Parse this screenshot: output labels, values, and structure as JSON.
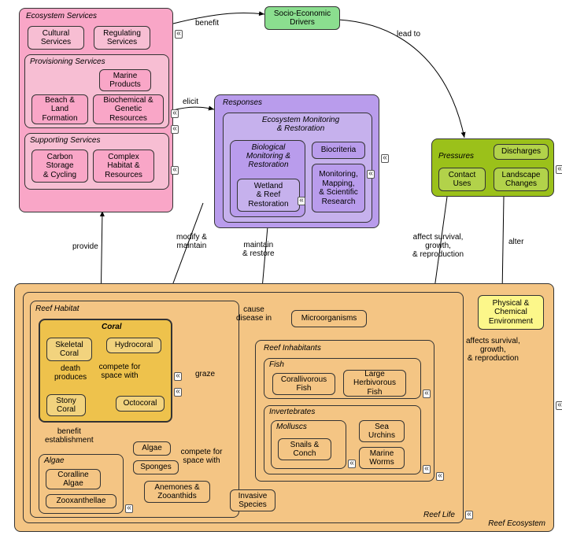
{
  "colors": {
    "ecoservices": "#f9a6c7",
    "ecoservices_item": "#f7bed3",
    "socio": "#8bde8f",
    "responses": "#b99cec",
    "responses_item": "#c6b1ed",
    "pressures": "#9bc11a",
    "pressures_item": "#b2d24a",
    "reef": "#f4c584",
    "reef_item": "#f4c584",
    "coral_group": "#eec24c",
    "coral_item": "#f2d37e",
    "physchem": "#fcf78a",
    "border": "#333333",
    "arrow": "#000000"
  },
  "groups": {
    "ecoservices": {
      "title": "Ecosystem Services"
    },
    "provisioning": {
      "title": "Provisioning Services"
    },
    "supporting": {
      "title": "Supporting Services"
    },
    "responses": {
      "title": "Responses"
    },
    "eco_monitor": {
      "title": "Ecosystem Monitoring\n& Restoration"
    },
    "bio_monitor": {
      "title": "Biological\nMonitoring &\nRestoration"
    },
    "pressures": {
      "title": "Pressures"
    },
    "reef_eco": {
      "title": "Reef Ecosystem"
    },
    "reef_life": {
      "title": "Reef Life"
    },
    "reef_habitat": {
      "title": "Reef Habitat"
    },
    "reef_inhab": {
      "title": "Reef Inhabitants"
    },
    "coral": {
      "title": "Coral"
    },
    "algae_grp": {
      "title": "Algae"
    },
    "fish": {
      "title": "Fish"
    },
    "inverts": {
      "title": "Invertebrates"
    },
    "molluscs": {
      "title": "Molluscs"
    }
  },
  "nodes": {
    "cultural": "Cultural\nServices",
    "regulating": "Regulating\nServices",
    "marine_prod": "Marine\nProducts",
    "beach_land": "Beach &\nLand\nFormation",
    "biochem": "Biochemical &\nGenetic\nResources",
    "carbon": "Carbon\nStorage\n& Cycling",
    "habitat": "Complex\nHabitat &\nResources",
    "socio": "Socio-Economic\nDrivers",
    "biocriteria": "Biocriteria",
    "wetland": "Wetland\n& Reef\nRestoration",
    "mapping": "Monitoring,\nMapping,\n& Scientific\nResearch",
    "discharges": "Discharges",
    "contact": "Contact\nUses",
    "landscape": "Landscape\nChanges",
    "physchem": "Physical &\nChemical\nEnvironment",
    "micro": "Microorganisms",
    "skeletal": "Skeletal\nCoral",
    "hydro": "Hydrocoral",
    "stony": "Stony\nCoral",
    "octo": "Octocoral",
    "algae2": "Algae",
    "sponges": "Sponges",
    "anemones": "Anemones &\nZooanthids",
    "invasive": "Invasive\nSpecies",
    "coralline": "Coralline\nAlgae",
    "zoox": "Zooxanthellae",
    "coralliv": "Corallivorous\nFish",
    "herbiv": "Large\nHerbivorous\nFish",
    "snails": "Snails &\nConch",
    "urchins": "Sea\nUrchins",
    "worms": "Marine\nWorms"
  },
  "edges": {
    "benefit": "benefit",
    "leadto": "lead to",
    "elicit": "elicit",
    "modify": "modify &\nmaintain",
    "maintain": "maintain\n& restore",
    "affect1": "affect survival,\ngrowth,\n& reproduction",
    "alter": "alter",
    "provide": "provide",
    "affect2": "affects survival,\ngrowth,\n& reproduction",
    "cause": "cause\ndisease in",
    "graze": "graze",
    "compete1": "compete for\nspace with",
    "compete2": "compete for\nspace with",
    "death": "death\nproduces",
    "benest": "benefit\nestablishment"
  }
}
